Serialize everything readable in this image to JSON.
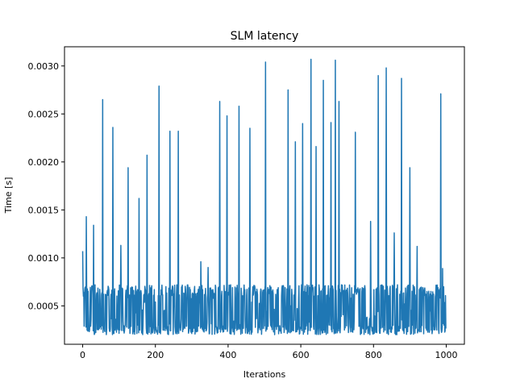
{
  "chart_data": {
    "type": "line",
    "title": "SLM latency",
    "xlabel": "Iterations",
    "ylabel": "Time [s]",
    "xlim": [
      -50,
      1050
    ],
    "ylim": [
      0.0001,
      0.0032
    ],
    "xticks": [
      0,
      200,
      400,
      600,
      800,
      1000
    ],
    "xtick_labels": [
      "0",
      "200",
      "400",
      "600",
      "800",
      "1000"
    ],
    "yticks": [
      0.0005,
      0.001,
      0.0015,
      0.002,
      0.0025,
      0.003
    ],
    "ytick_labels": [
      "0.0005",
      "0.0010",
      "0.0015",
      "0.0020",
      "0.0025",
      "0.0030"
    ],
    "grid": false,
    "legend": "none",
    "series": [
      {
        "color": "#1f77b4",
        "n_points": 1000,
        "baseline_range": [
          0.0002,
          0.00072
        ],
        "spikes": [
          {
            "x": 0,
            "y": 0.00107
          },
          {
            "x": 10,
            "y": 0.00143
          },
          {
            "x": 30,
            "y": 0.00134
          },
          {
            "x": 55,
            "y": 0.00265
          },
          {
            "x": 83,
            "y": 0.00236
          },
          {
            "x": 105,
            "y": 0.00113
          },
          {
            "x": 125,
            "y": 0.00194
          },
          {
            "x": 155,
            "y": 0.00162
          },
          {
            "x": 177,
            "y": 0.00207
          },
          {
            "x": 210,
            "y": 0.00279
          },
          {
            "x": 240,
            "y": 0.00232
          },
          {
            "x": 263,
            "y": 0.00232
          },
          {
            "x": 325,
            "y": 0.00096
          },
          {
            "x": 345,
            "y": 0.0009
          },
          {
            "x": 377,
            "y": 0.00263
          },
          {
            "x": 397,
            "y": 0.00248
          },
          {
            "x": 430,
            "y": 0.00258
          },
          {
            "x": 460,
            "y": 0.00235
          },
          {
            "x": 503,
            "y": 0.00304
          },
          {
            "x": 565,
            "y": 0.00275
          },
          {
            "x": 585,
            "y": 0.00221
          },
          {
            "x": 605,
            "y": 0.0024
          },
          {
            "x": 628,
            "y": 0.00307
          },
          {
            "x": 642,
            "y": 0.00216
          },
          {
            "x": 662,
            "y": 0.00285
          },
          {
            "x": 683,
            "y": 0.00241
          },
          {
            "x": 695,
            "y": 0.00306
          },
          {
            "x": 705,
            "y": 0.00263
          },
          {
            "x": 750,
            "y": 0.00231
          },
          {
            "x": 792,
            "y": 0.00138
          },
          {
            "x": 813,
            "y": 0.0029
          },
          {
            "x": 835,
            "y": 0.00298
          },
          {
            "x": 857,
            "y": 0.00126
          },
          {
            "x": 877,
            "y": 0.00287
          },
          {
            "x": 900,
            "y": 0.00194
          },
          {
            "x": 920,
            "y": 0.00112
          },
          {
            "x": 985,
            "y": 0.00271
          },
          {
            "x": 990,
            "y": 0.00089
          }
        ]
      }
    ]
  }
}
